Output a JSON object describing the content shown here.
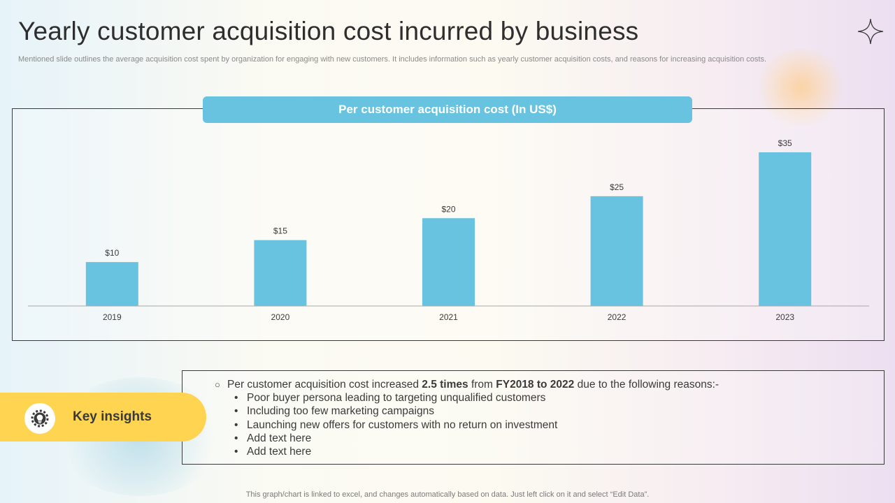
{
  "header": {
    "title": "Yearly customer acquisition cost incurred by business",
    "subtitle": "Mentioned slide outlines the average acquisition cost spent by organization for engaging with new customers. It includes information such as yearly customer acquisition costs, and reasons for increasing acquisition costs."
  },
  "chart_header": "Per customer acquisition cost (In US$)",
  "chart_data": {
    "type": "bar",
    "title": "Per customer acquisition cost (In US$)",
    "categories": [
      "2019",
      "2020",
      "2021",
      "2022",
      "2023"
    ],
    "values": [
      10,
      15,
      20,
      25,
      35
    ],
    "value_labels": [
      "$10",
      "$15",
      "$20",
      "$25",
      "$35"
    ],
    "xlabel": "",
    "ylabel": "",
    "ylim": [
      0,
      35
    ],
    "grid": false,
    "legend": "none",
    "bar_color": "#67c3df"
  },
  "insights": {
    "label": "Key insights",
    "main_parts": [
      "Per customer acquisition cost increased ",
      "2.5 times",
      " from ",
      "FY2018 to 2022",
      " due to the following reasons:-"
    ],
    "bullets": [
      "Poor buyer persona leading to targeting unqualified customers",
      "Including  too few marketing campaigns",
      "Launching new offers for customers with no return  on investment",
      "Add text here",
      "Add text here"
    ]
  },
  "footnote": "This graph/chart is linked to excel,  and changes automatically based on data. Just left click on it and select “Edit Data”.",
  "colors": {
    "accent": "#67c3df",
    "highlight": "#ffd451",
    "text": "#3a3a3a"
  }
}
